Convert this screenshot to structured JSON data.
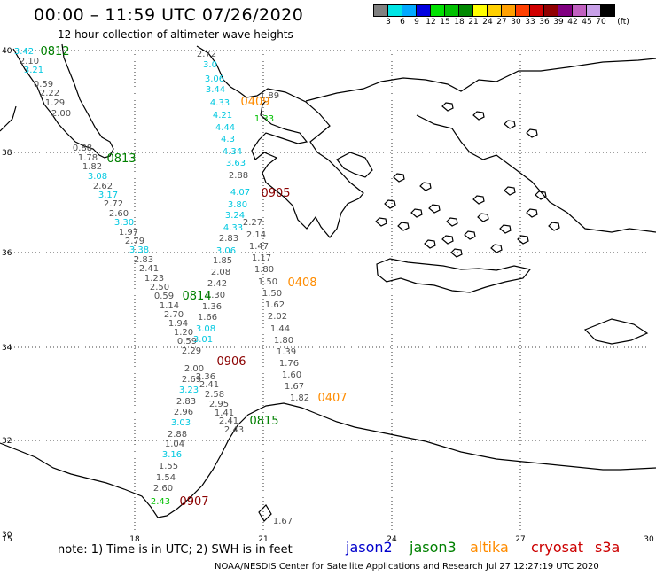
{
  "header": {
    "title": "00:00 – 11:59 UTC 07/26/2020",
    "subtitle": "12 hour collection of altimeter wave heights"
  },
  "legend": {
    "colors": [
      "#808080",
      "#00e5e5",
      "#00a8ff",
      "#0000e0",
      "#00e000",
      "#00c000",
      "#008800",
      "#ffff00",
      "#ffd000",
      "#ffa000",
      "#ff4000",
      "#d00000",
      "#900000",
      "#800080",
      "#c060c0",
      "#c8a0e8",
      "#000000"
    ],
    "labels": [
      "3",
      "6",
      "9",
      "12",
      "15",
      "18",
      "21",
      "24",
      "27",
      "30",
      "33",
      "36",
      "39",
      "42",
      "45",
      "70"
    ],
    "unit": "(ft)"
  },
  "map": {
    "lat_labels": [
      "40",
      "38",
      "36",
      "34",
      "32",
      "30"
    ],
    "lon_labels": [
      "15",
      "18",
      "21",
      "24",
      "27",
      "30"
    ]
  },
  "tracks": [
    {
      "sat": "jason3",
      "color": "#007a00",
      "label_color": "#008000",
      "time": "0812",
      "time_pos": [
        62,
        57
      ],
      "points": [
        {
          "v": "3.42",
          "c": "#00c8e0",
          "p": [
            27,
            57
          ]
        },
        {
          "v": "2.10",
          "c": "#505050",
          "p": [
            33,
            68
          ]
        },
        {
          "v": "3.21",
          "c": "#00c8e0",
          "p": [
            38,
            78
          ]
        },
        {
          "v": "0.59",
          "c": "#505050",
          "p": [
            49,
            94
          ]
        },
        {
          "v": "2.22",
          "c": "#505050",
          "p": [
            56,
            104
          ]
        },
        {
          "v": "1.29",
          "c": "#505050",
          "p": [
            62,
            115
          ]
        },
        {
          "v": "2.00",
          "c": "#505050",
          "p": [
            69,
            127
          ]
        }
      ]
    },
    {
      "sat": "jason3",
      "color": "#007a00",
      "label_color": "#008000",
      "time": "0813",
      "time_pos": [
        137,
        178
      ],
      "points": [
        {
          "v": "0.88",
          "c": "#505050",
          "p": [
            93,
            166
          ]
        },
        {
          "v": "1.78",
          "c": "#505050",
          "p": [
            99,
            177
          ]
        },
        {
          "v": "1.82",
          "c": "#505050",
          "p": [
            104,
            187
          ]
        },
        {
          "v": "3.08",
          "c": "#00c8e0",
          "p": [
            110,
            198
          ]
        },
        {
          "v": "2.62",
          "c": "#505050",
          "p": [
            116,
            209
          ]
        },
        {
          "v": "3.17",
          "c": "#00c8e0",
          "p": [
            122,
            219
          ]
        },
        {
          "v": "2.72",
          "c": "#505050",
          "p": [
            128,
            229
          ]
        },
        {
          "v": "2.60",
          "c": "#505050",
          "p": [
            134,
            240
          ]
        },
        {
          "v": "3.30",
          "c": "#00c8e0",
          "p": [
            140,
            250
          ]
        },
        {
          "v": "1.97",
          "c": "#505050",
          "p": [
            145,
            261
          ]
        },
        {
          "v": "2.79",
          "c": "#505050",
          "p": [
            152,
            271
          ]
        },
        {
          "v": "3.38",
          "c": "#00c8e0",
          "p": [
            157,
            281
          ]
        },
        {
          "v": "2.83",
          "c": "#505050",
          "p": [
            162,
            292
          ]
        },
        {
          "v": "2.41",
          "c": "#505050",
          "p": [
            168,
            302
          ]
        },
        {
          "v": "1.23",
          "c": "#505050",
          "p": [
            174,
            313
          ]
        },
        {
          "v": "2.50",
          "c": "#505050",
          "p": [
            180,
            323
          ]
        },
        {
          "v": "0.59",
          "c": "#505050",
          "p": [
            185,
            333
          ]
        },
        {
          "v": "1.14",
          "c": "#505050",
          "p": [
            191,
            344
          ]
        },
        {
          "v": "2.70",
          "c": "#505050",
          "p": [
            196,
            354
          ]
        },
        {
          "v": "1.94",
          "c": "#505050",
          "p": [
            201,
            364
          ]
        },
        {
          "v": "1.20",
          "c": "#505050",
          "p": [
            207,
            374
          ]
        },
        {
          "v": "0.59",
          "c": "#505050",
          "p": [
            211,
            384
          ]
        },
        {
          "v": "2.29",
          "c": "#505050",
          "p": [
            216,
            395
          ]
        },
        {
          "v": "2.00",
          "c": "#505050",
          "p": [
            219,
            415
          ]
        },
        {
          "v": "2.69",
          "c": "#505050",
          "p": [
            216,
            427
          ]
        },
        {
          "v": "3.23",
          "c": "#00c8e0",
          "p": [
            213,
            439
          ]
        },
        {
          "v": "2.83",
          "c": "#505050",
          "p": [
            210,
            452
          ]
        },
        {
          "v": "2.96",
          "c": "#505050",
          "p": [
            207,
            464
          ]
        },
        {
          "v": "3.03",
          "c": "#00c8e0",
          "p": [
            204,
            476
          ]
        },
        {
          "v": "2.88",
          "c": "#505050",
          "p": [
            200,
            489
          ]
        },
        {
          "v": "1.04",
          "c": "#505050",
          "p": [
            197,
            500
          ]
        },
        {
          "v": "3.16",
          "c": "#00c8e0",
          "p": [
            194,
            512
          ]
        },
        {
          "v": "1.55",
          "c": "#505050",
          "p": [
            190,
            525
          ]
        },
        {
          "v": "1.54",
          "c": "#505050",
          "p": [
            187,
            538
          ]
        },
        {
          "v": "2.60",
          "c": "#505050",
          "p": [
            184,
            550
          ]
        },
        {
          "v": "2.43",
          "c": "#00c000",
          "p": [
            181,
            565
          ]
        }
      ]
    },
    {
      "sat": "cryosat",
      "color": "#8b0000",
      "label_color": "#8b0000",
      "time": "0907",
      "time_pos": [
        219,
        565
      ],
      "points": []
    },
    {
      "sat": "jason3",
      "color": "#007a00",
      "label_color": "#008000",
      "time": "0814",
      "time_pos": [
        222,
        333
      ],
      "points": [
        {
          "v": "2.72",
          "c": "#505050",
          "p": [
            233,
            60
          ]
        },
        {
          "v": "3.0",
          "c": "#00c8e0",
          "p": [
            237,
            72
          ]
        },
        {
          "v": "3.06",
          "c": "#00c8e0",
          "p": [
            242,
            88
          ]
        },
        {
          "v": "3.44",
          "c": "#00c8e0",
          "p": [
            243,
            100
          ]
        },
        {
          "v": "4.33",
          "c": "#00c8e0",
          "p": [
            248,
            115
          ]
        },
        {
          "v": "4.21",
          "c": "#00c8e0",
          "p": [
            251,
            129
          ]
        },
        {
          "v": "4.44",
          "c": "#00c8e0",
          "p": [
            254,
            143
          ]
        },
        {
          "v": "4.3",
          "c": "#00c8e0",
          "p": [
            257,
            156
          ]
        },
        {
          "v": "4.34",
          "c": "#00c8e0",
          "p": [
            262,
            170
          ]
        },
        {
          "v": "3.63",
          "c": "#00c8e0",
          "p": [
            266,
            183
          ]
        },
        {
          "v": "2.88",
          "c": "#505050",
          "p": [
            269,
            197
          ]
        },
        {
          "v": "4.07",
          "c": "#00c8e0",
          "p": [
            271,
            216
          ]
        },
        {
          "v": "3.80",
          "c": "#00c8e0",
          "p": [
            268,
            230
          ]
        },
        {
          "v": "3.24",
          "c": "#00c8e0",
          "p": [
            265,
            242
          ]
        },
        {
          "v": "4.33",
          "c": "#00c8e0",
          "p": [
            263,
            256
          ]
        },
        {
          "v": "2.83",
          "c": "#505050",
          "p": [
            258,
            268
          ]
        },
        {
          "v": "3.06",
          "c": "#00c8e0",
          "p": [
            255,
            282
          ]
        },
        {
          "v": "1.85",
          "c": "#505050",
          "p": [
            251,
            293
          ]
        },
        {
          "v": "2.08",
          "c": "#505050",
          "p": [
            249,
            306
          ]
        },
        {
          "v": "2.42",
          "c": "#505050",
          "p": [
            245,
            319
          ]
        },
        {
          "v": "1.30",
          "c": "#505050",
          "p": [
            243,
            332
          ]
        },
        {
          "v": "1.36",
          "c": "#505050",
          "p": [
            239,
            345
          ]
        },
        {
          "v": "1.66",
          "c": "#505050",
          "p": [
            234,
            357
          ]
        },
        {
          "v": "3.08",
          "c": "#00c8e0",
          "p": [
            232,
            370
          ]
        },
        {
          "v": "3.01",
          "c": "#00c8e0",
          "p": [
            229,
            382
          ]
        },
        {
          "v": "2.36",
          "c": "#505050",
          "p": [
            232,
            424
          ]
        },
        {
          "v": "2.41",
          "c": "#505050",
          "p": [
            236,
            433
          ]
        },
        {
          "v": "2.58",
          "c": "#505050",
          "p": [
            242,
            444
          ]
        },
        {
          "v": "2.95",
          "c": "#505050",
          "p": [
            247,
            455
          ]
        },
        {
          "v": "1.41",
          "c": "#505050",
          "p": [
            253,
            465
          ]
        },
        {
          "v": "2.41",
          "c": "#505050",
          "p": [
            258,
            474
          ]
        },
        {
          "v": "2.43",
          "c": "#505050",
          "p": [
            264,
            484
          ]
        }
      ]
    },
    {
      "sat": "jason3",
      "color": "#007a00",
      "label_color": "#008000",
      "time": "0815",
      "time_pos": [
        298,
        474
      ],
      "points": []
    },
    {
      "sat": "cryosat",
      "color": "#8b0000",
      "label_color": "#8b0000",
      "time": "0906",
      "time_pos": [
        261,
        407
      ],
      "points": []
    },
    {
      "sat": "cryosat",
      "color": "#8b0000",
      "label_color": "#8b0000",
      "time": "0905",
      "time_pos": [
        311,
        217
      ],
      "points": [
        {
          "v": "2.27",
          "c": "#505050",
          "p": [
            285,
            250
          ]
        },
        {
          "v": "2.14",
          "c": "#505050",
          "p": [
            289,
            264
          ]
        },
        {
          "v": "1.47",
          "c": "#505050",
          "p": [
            292,
            277
          ]
        },
        {
          "v": "1.17",
          "c": "#505050",
          "p": [
            295,
            290
          ]
        },
        {
          "v": "1.80",
          "c": "#505050",
          "p": [
            298,
            303
          ]
        },
        {
          "v": "1.50",
          "c": "#505050",
          "p": [
            302,
            317
          ]
        },
        {
          "v": "1.50",
          "c": "#505050",
          "p": [
            307,
            330
          ]
        },
        {
          "v": "1.62",
          "c": "#505050",
          "p": [
            310,
            343
          ]
        },
        {
          "v": "2.02",
          "c": "#505050",
          "p": [
            313,
            356
          ]
        },
        {
          "v": "1.44",
          "c": "#505050",
          "p": [
            316,
            370
          ]
        },
        {
          "v": "1.80",
          "c": "#505050",
          "p": [
            320,
            383
          ]
        },
        {
          "v": "1.39",
          "c": "#505050",
          "p": [
            323,
            396
          ]
        },
        {
          "v": "1.76",
          "c": "#505050",
          "p": [
            326,
            409
          ]
        },
        {
          "v": "1.60",
          "c": "#505050",
          "p": [
            329,
            422
          ]
        },
        {
          "v": "1.67",
          "c": "#505050",
          "p": [
            332,
            435
          ]
        },
        {
          "v": "1.82",
          "c": "#505050",
          "p": [
            338,
            448
          ]
        }
      ]
    },
    {
      "sat": "altika",
      "color": "#ff8c00",
      "label_color": "#ff8c00",
      "time": "0408",
      "time_pos": [
        341,
        318
      ],
      "points": []
    },
    {
      "sat": "altika",
      "color": "#ff8c00",
      "label_color": "#ff8c00",
      "time": "0407",
      "time_pos": [
        375,
        448
      ],
      "points": []
    },
    {
      "sat": "altika",
      "color": "#ff8c00",
      "label_color": "#ff8c00",
      "time": "0409",
      "time_pos": [
        288,
        114
      ],
      "points": [
        {
          "v": "1.89",
          "c": "#505050",
          "p": [
            304,
            107
          ]
        },
        {
          "v": "1.33",
          "c": "#00c000",
          "p": [
            298,
            133
          ]
        },
        {
          "v": "1.67",
          "c": "#505050",
          "p": [
            319,
            587
          ]
        }
      ]
    }
  ],
  "footer": {
    "note": "note:  1) Time is in UTC;  2) SWH is in feet",
    "satellites": [
      {
        "name": "jason2",
        "color": "#0000cc"
      },
      {
        "name": "jason3",
        "color": "#008000"
      },
      {
        "name": "altika",
        "color": "#ff8c00"
      },
      {
        "name": "cryosat",
        "color": "#cc0000"
      },
      {
        "name": "s3a",
        "color": "#cc0000"
      }
    ],
    "credit": "NOAA/NESDIS Center for Satellite Applications and Research     Jul 27 12:27:19 UTC 2020"
  }
}
